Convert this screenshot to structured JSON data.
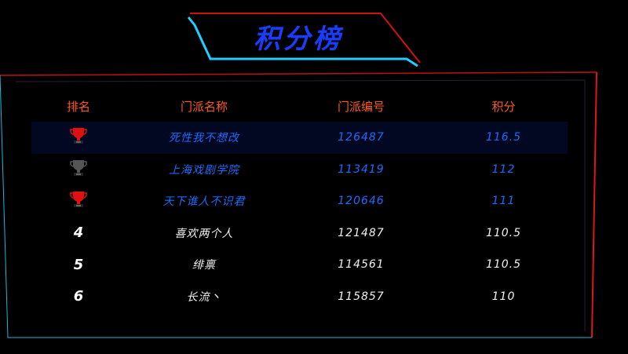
{
  "title": "积分榜",
  "colors": {
    "accent_blue": "#1a3cff",
    "cyan": "#1ed0ff",
    "red": "#ff1a1a",
    "header": "#ff5a1a",
    "top_text": "#1a6cff"
  },
  "columns": [
    "排名",
    "门派名称",
    "门派编号",
    "积分"
  ],
  "rows": [
    {
      "rank": "1",
      "icon": "trophy-gold-red-icon",
      "name": "死性我不想改",
      "id": "126487",
      "score": "116.5",
      "highlight": true
    },
    {
      "rank": "2",
      "icon": "trophy-gray-icon",
      "name": "上海戏剧学院",
      "id": "113419",
      "score": "112"
    },
    {
      "rank": "3",
      "icon": "trophy-red-icon",
      "name": "天下谁人不识君",
      "id": "120646",
      "score": "111"
    },
    {
      "rank": "4",
      "name": "喜欢两个人",
      "id": "121487",
      "score": "110.5"
    },
    {
      "rank": "5",
      "name": "绯禀",
      "id": "114561",
      "score": "110.5"
    },
    {
      "rank": "6",
      "name": "长流丶",
      "id": "115857",
      "score": "110"
    }
  ]
}
